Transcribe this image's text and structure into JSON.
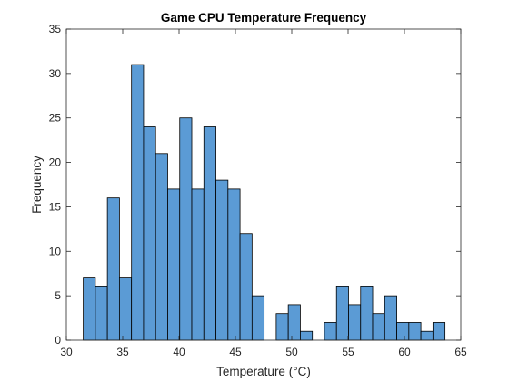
{
  "chart_data": {
    "type": "histogram",
    "title": "Game CPU Temperature Frequency",
    "xlabel": "Temperature (°C)",
    "ylabel": "Frequency",
    "xlim": [
      30,
      65
    ],
    "ylim": [
      0,
      35
    ],
    "xticks": [
      30,
      35,
      40,
      45,
      50,
      55,
      60,
      65
    ],
    "yticks": [
      0,
      5,
      10,
      15,
      20,
      25,
      30,
      35
    ],
    "bin_width": 1.07,
    "bin_start": 31.5,
    "bins": [
      {
        "x0": 31.5,
        "x1": 32.57,
        "count": 7
      },
      {
        "x0": 32.57,
        "x1": 33.64,
        "count": 6
      },
      {
        "x0": 33.64,
        "x1": 34.71,
        "count": 16
      },
      {
        "x0": 34.71,
        "x1": 35.78,
        "count": 7
      },
      {
        "x0": 35.78,
        "x1": 36.85,
        "count": 31
      },
      {
        "x0": 36.85,
        "x1": 37.92,
        "count": 24
      },
      {
        "x0": 37.92,
        "x1": 38.99,
        "count": 21
      },
      {
        "x0": 38.99,
        "x1": 40.06,
        "count": 17
      },
      {
        "x0": 40.06,
        "x1": 41.13,
        "count": 25
      },
      {
        "x0": 41.13,
        "x1": 42.2,
        "count": 17
      },
      {
        "x0": 42.2,
        "x1": 43.27,
        "count": 24
      },
      {
        "x0": 43.27,
        "x1": 44.34,
        "count": 18
      },
      {
        "x0": 44.34,
        "x1": 45.41,
        "count": 17
      },
      {
        "x0": 45.41,
        "x1": 46.48,
        "count": 12
      },
      {
        "x0": 46.48,
        "x1": 47.55,
        "count": 5
      },
      {
        "x0": 47.55,
        "x1": 48.62,
        "count": 0
      },
      {
        "x0": 48.62,
        "x1": 49.69,
        "count": 3
      },
      {
        "x0": 49.69,
        "x1": 50.76,
        "count": 4
      },
      {
        "x0": 50.76,
        "x1": 51.83,
        "count": 1
      },
      {
        "x0": 51.83,
        "x1": 52.9,
        "count": 0
      },
      {
        "x0": 52.9,
        "x1": 53.97,
        "count": 2
      },
      {
        "x0": 53.97,
        "x1": 55.04,
        "count": 6
      },
      {
        "x0": 55.04,
        "x1": 56.11,
        "count": 4
      },
      {
        "x0": 56.11,
        "x1": 57.18,
        "count": 6
      },
      {
        "x0": 57.18,
        "x1": 58.25,
        "count": 3
      },
      {
        "x0": 58.25,
        "x1": 59.32,
        "count": 5
      },
      {
        "x0": 59.32,
        "x1": 60.39,
        "count": 2
      },
      {
        "x0": 60.39,
        "x1": 61.46,
        "count": 2
      },
      {
        "x0": 61.46,
        "x1": 62.53,
        "count": 1
      },
      {
        "x0": 62.53,
        "x1": 63.6,
        "count": 2
      }
    ],
    "bar_color": "#5b9bd5",
    "grid": false,
    "legend": "none"
  }
}
